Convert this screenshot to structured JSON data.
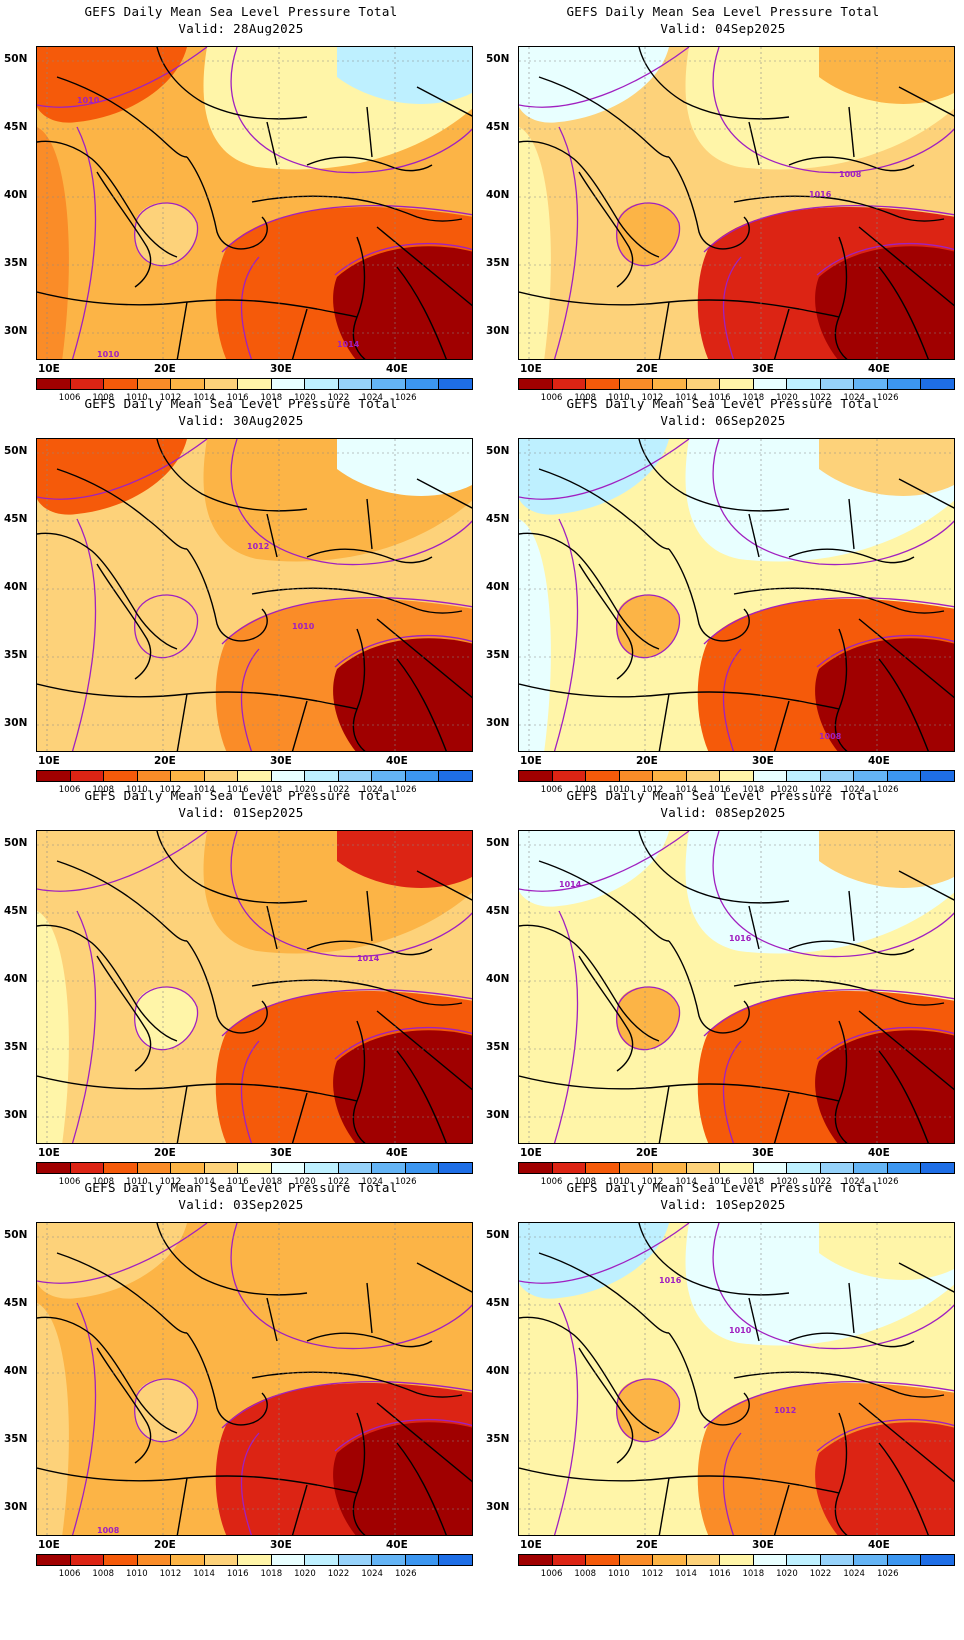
{
  "title": "GEFS Daily Mean Sea Level Pressure Total",
  "panels": [
    {
      "valid": "Valid: 28Aug2025",
      "labels": [
        "1010",
        "1014",
        "1010"
      ],
      "scheme": "a"
    },
    {
      "valid": "Valid: 04Sep2025",
      "labels": [
        "1016",
        "1008"
      ],
      "scheme": "b"
    },
    {
      "valid": "Valid: 30Aug2025",
      "labels": [
        "1010",
        "1012"
      ],
      "scheme": "c"
    },
    {
      "valid": "Valid: 06Sep2025",
      "labels": [
        "1008"
      ],
      "scheme": "d"
    },
    {
      "valid": "Valid: 01Sep2025",
      "labels": [
        "1014"
      ],
      "scheme": "e"
    },
    {
      "valid": "Valid: 08Sep2025",
      "labels": [
        "1016",
        "1014"
      ],
      "scheme": "f"
    },
    {
      "valid": "Valid: 03Sep2025",
      "labels": [
        "1008"
      ],
      "scheme": "g"
    },
    {
      "valid": "Valid: 10Sep2025",
      "labels": [
        "1016",
        "1012",
        "1010"
      ],
      "scheme": "h"
    }
  ],
  "lat_labels": [
    "50N",
    "45N",
    "40N",
    "35N",
    "30N"
  ],
  "lon_labels": [
    "10E",
    "20E",
    "30E",
    "40E"
  ],
  "colorbar": {
    "colors": [
      "#a00000",
      "#dc2414",
      "#f55a0a",
      "#fa8c28",
      "#fcb446",
      "#fdd27a",
      "#fff5a8",
      "#e8ffff",
      "#bef0ff",
      "#96d2fa",
      "#64b4f5",
      "#3c96f0",
      "#1e6ee6"
    ],
    "labels": [
      "1006",
      "1008",
      "1010",
      "1012",
      "1014",
      "1016",
      "1018",
      "1020",
      "1022",
      "1024",
      "1026"
    ]
  },
  "colors": {
    "contour": "#a020c0",
    "coast": "#000000"
  }
}
